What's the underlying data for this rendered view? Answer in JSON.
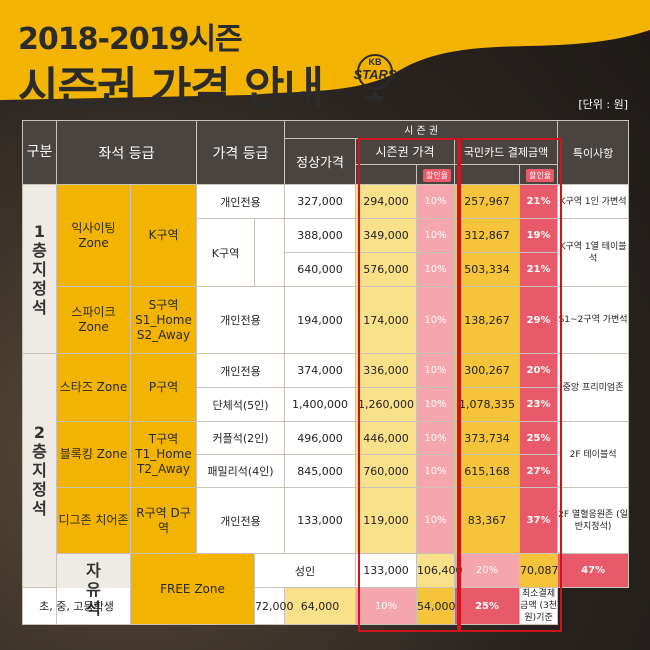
{
  "header": {
    "title_line1": "2018-2019시즌",
    "title_line2": "시즌권 가격 안내",
    "logo_top": "KB",
    "logo_bottom": "STARS",
    "unit": "[단위 : 원]"
  },
  "table": {
    "col_category": "구분",
    "col_seat": "좌석 등급",
    "col_price_grade": "가격 등급",
    "col_season": "시 즌 권",
    "col_normal": "정상가격",
    "col_season_price": "시즌권 가격",
    "col_card_price": "국민카드 결제금액",
    "col_notes": "특이사항",
    "discount_label": "할인율",
    "floor1": "1층 지정석",
    "floor2": "2층 지정석",
    "free": "자유석",
    "rows": [
      {
        "zone": "익사이팅 Zone",
        "area": "K구역",
        "grade": "개인전용",
        "normal": "327,000",
        "season": "294,000",
        "d1": "10%",
        "card": "257,967",
        "d2": "21%",
        "note": "K구역 1인 가변석"
      },
      {
        "grade": "K구역",
        "normal": "388,000",
        "season": "349,000",
        "d1": "10%",
        "card": "312,867",
        "d2": "19%",
        "note": "K구역 1열 테이블석"
      },
      {
        "normal": "640,000",
        "season": "576,000",
        "d1": "10%",
        "card": "503,334",
        "d2": "21%"
      },
      {
        "zone": "스파이크 Zone",
        "area": "S구역 S1_Home S2_Away",
        "grade": "개인전용",
        "normal": "194,000",
        "season": "174,000",
        "d1": "10%",
        "card": "138,267",
        "d2": "29%",
        "note": "S1~2구역 가변석"
      },
      {
        "zone": "스타즈 Zone",
        "area": "P구역",
        "grade": "개인전용",
        "normal": "374,000",
        "season": "336,000",
        "d1": "10%",
        "card": "300,267",
        "d2": "20%",
        "note": "중앙 프리미엄존"
      },
      {
        "grade": "단체석(5인)",
        "normal": "1,400,000",
        "season": "1,260,000",
        "d1": "10%",
        "card": "1,078,335",
        "d2": "23%"
      },
      {
        "zone": "블록킹 Zone",
        "area": "T구역 T1_Home T2_Away",
        "grade": "커플석(2인)",
        "normal": "496,000",
        "season": "446,000",
        "d1": "10%",
        "card": "373,734",
        "d2": "25%",
        "note": "2F 테이블석"
      },
      {
        "grade": "패밀리석(4인)",
        "normal": "845,000",
        "season": "760,000",
        "d1": "10%",
        "card": "615,168",
        "d2": "27%"
      },
      {
        "zone": "디그존 치어존",
        "area": "R구역 D구역",
        "grade": "개인전용",
        "normal": "133,000",
        "season": "119,000",
        "d1": "10%",
        "card": "83,367",
        "d2": "37%",
        "note": "2F 열혈응원존 (일반지정석)"
      },
      {
        "zone": "FREE Zone",
        "grade": "성인",
        "normal": "133,000",
        "season": "106,400",
        "d1": "20%",
        "card": "70,087",
        "d2": "47%"
      },
      {
        "grade": "초, 중, 고등학생",
        "normal": "72,000",
        "season": "64,000",
        "d1": "10%",
        "card": "54,000",
        "d2": "25%",
        "note": "최소결제금액 (3천원)기준"
      }
    ]
  }
}
